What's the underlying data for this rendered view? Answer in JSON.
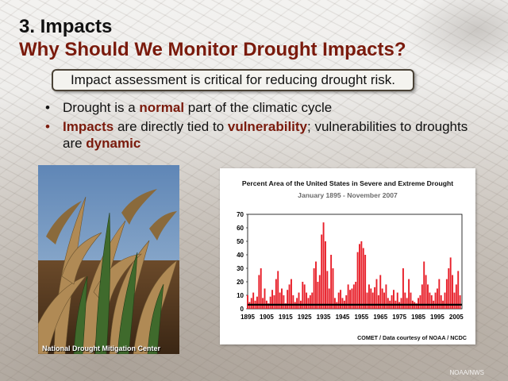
{
  "slide": {
    "title_line1": "3. Impacts",
    "title_line2": "Why Should We Monitor Drought Impacts?",
    "callout": "Impact assessment is critical for reducing drought risk.",
    "bullets": [
      {
        "bullet": "•",
        "parts": [
          "Drought is a ",
          "normal",
          " part of the climatic cycle"
        ]
      },
      {
        "bullet": "•",
        "parts": [
          "Impacts",
          " are directly tied to ",
          "vulnerability",
          "; vulnerabilities to droughts are ",
          "dynamic"
        ]
      }
    ],
    "photo_caption": "National Drought Mitigation Center",
    "chart_credit": "COMET / Data courtesy of NOAA / NCDC",
    "watermark": "NOAA/NWS"
  },
  "colors": {
    "title_accent": "#7a1a0c",
    "bars": "#e8202a",
    "mean_line": "#000000",
    "chart_subtitle": "#6b6b6b"
  },
  "chart_data": {
    "type": "bar",
    "title": "Percent Area of the United States in Severe and Extreme Drought",
    "subtitle": "January 1895 - November 2007",
    "xlabel": "",
    "ylabel": "",
    "xlim": [
      1895,
      2008
    ],
    "ylim": [
      0,
      70
    ],
    "yticks": [
      0,
      10,
      20,
      30,
      40,
      50,
      60,
      70
    ],
    "xticks": [
      1895,
      1905,
      1915,
      1925,
      1935,
      1945,
      1955,
      1965,
      1975,
      1985,
      1995,
      2005
    ],
    "mean_line": 3,
    "series": [
      {
        "name": "Percent area in severe and extreme drought",
        "x": [
          1895,
          1896,
          1897,
          1898,
          1899,
          1900,
          1901,
          1902,
          1903,
          1904,
          1905,
          1906,
          1907,
          1908,
          1909,
          1910,
          1911,
          1912,
          1913,
          1914,
          1915,
          1916,
          1917,
          1918,
          1919,
          1920,
          1921,
          1922,
          1923,
          1924,
          1925,
          1926,
          1927,
          1928,
          1929,
          1930,
          1931,
          1932,
          1933,
          1934,
          1935,
          1936,
          1937,
          1938,
          1939,
          1940,
          1941,
          1942,
          1943,
          1944,
          1945,
          1946,
          1947,
          1948,
          1949,
          1950,
          1951,
          1952,
          1953,
          1954,
          1955,
          1956,
          1957,
          1958,
          1959,
          1960,
          1961,
          1962,
          1963,
          1964,
          1965,
          1966,
          1967,
          1968,
          1969,
          1970,
          1971,
          1972,
          1973,
          1974,
          1975,
          1976,
          1977,
          1978,
          1979,
          1980,
          1981,
          1982,
          1983,
          1984,
          1985,
          1986,
          1987,
          1988,
          1989,
          1990,
          1991,
          1992,
          1993,
          1994,
          1995,
          1996,
          1997,
          1998,
          1999,
          2000,
          2001,
          2002,
          2003,
          2004,
          2005,
          2006,
          2007
        ],
        "values": [
          10,
          5,
          8,
          12,
          6,
          9,
          25,
          30,
          8,
          15,
          6,
          4,
          9,
          14,
          10,
          22,
          28,
          12,
          15,
          10,
          4,
          14,
          18,
          22,
          10,
          5,
          8,
          12,
          6,
          20,
          18,
          12,
          8,
          10,
          12,
          30,
          35,
          20,
          25,
          55,
          64,
          50,
          28,
          15,
          40,
          30,
          8,
          5,
          12,
          14,
          8,
          6,
          10,
          18,
          14,
          15,
          18,
          20,
          42,
          48,
          50,
          45,
          40,
          12,
          18,
          15,
          12,
          16,
          22,
          10,
          25,
          15,
          12,
          18,
          8,
          6,
          10,
          14,
          6,
          12,
          5,
          8,
          30,
          12,
          8,
          22,
          12,
          6,
          5,
          4,
          8,
          10,
          18,
          35,
          25,
          18,
          12,
          10,
          6,
          12,
          15,
          22,
          10,
          6,
          12,
          22,
          30,
          38,
          25,
          12,
          18,
          28,
          10
        ]
      }
    ]
  }
}
